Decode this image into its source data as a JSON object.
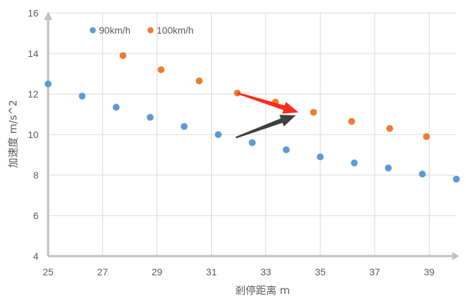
{
  "chart_data": {
    "type": "scatter",
    "xlabel": "剎停距离 m",
    "ylabel": "加速度 m/s^2",
    "xlim": [
      25,
      40
    ],
    "ylim": [
      4,
      16
    ],
    "x_ticks": [
      25,
      27,
      29,
      31,
      33,
      35,
      37,
      39
    ],
    "y_ticks": [
      4,
      6,
      8,
      10,
      12,
      14,
      16
    ],
    "grid": true,
    "legend_position": "top-left",
    "series": [
      {
        "name": "90km/h",
        "color": "#5b9bd5",
        "points": [
          [
            25.0,
            12.5
          ],
          [
            26.25,
            11.9
          ],
          [
            27.5,
            11.35
          ],
          [
            28.75,
            10.85
          ],
          [
            30.0,
            10.4
          ],
          [
            31.25,
            10.0
          ],
          [
            32.5,
            9.6
          ],
          [
            33.75,
            9.25
          ],
          [
            35.0,
            8.9
          ],
          [
            36.25,
            8.6
          ],
          [
            37.5,
            8.35
          ],
          [
            38.75,
            8.05
          ],
          [
            40.0,
            7.8
          ]
        ]
      },
      {
        "name": "100km/h",
        "color": "#ed7d31",
        "points": [
          [
            27.75,
            13.9
          ],
          [
            29.15,
            13.2
          ],
          [
            30.55,
            12.65
          ],
          [
            31.95,
            12.05
          ],
          [
            33.35,
            11.6
          ],
          [
            34.75,
            11.1
          ],
          [
            36.15,
            10.65
          ],
          [
            37.55,
            10.3
          ],
          [
            38.9,
            9.9
          ]
        ]
      }
    ],
    "annotations": [
      {
        "type": "arrow",
        "color": "#ff2a1a",
        "from": [
          31.95,
          12.05
        ],
        "to": [
          34.2,
          11.1
        ]
      },
      {
        "type": "arrow",
        "color": "#3f3f3f",
        "from": [
          31.9,
          9.85
        ],
        "to": [
          34.1,
          10.95
        ]
      }
    ]
  },
  "axis_color": "#bfbfbf",
  "grid_color": "#d9d9d9"
}
